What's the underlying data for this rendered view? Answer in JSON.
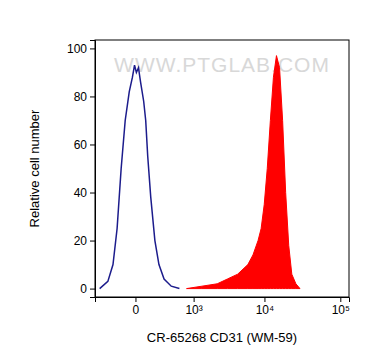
{
  "chart_data": {
    "type": "area",
    "x_label": "CR-65268 CD31 (WM-59)",
    "y_label": "Relative cell number",
    "annotations": [
      "WWW.PTGLAB.COM"
    ],
    "log": "x",
    "xlim": [
      -500,
      130000
    ],
    "ylim": [
      -3.5,
      103.5
    ],
    "xticks": [
      0,
      {
        "value": 1000,
        "label": "10³"
      },
      {
        "value": 10000,
        "label": "10⁴"
      },
      {
        "value": 100000,
        "label": "10⁵"
      }
    ],
    "yticks": [
      0,
      20,
      40,
      60,
      80,
      100
    ],
    "series": [
      {
        "type": "line",
        "color": "#1c1c8c",
        "x": [
          -407,
          -272,
          -203,
          -155,
          -113,
          -76,
          -43,
          -20,
          -6,
          6,
          20,
          35,
          59,
          76,
          94,
          123,
          167,
          216,
          287,
          407,
          579
        ],
        "values": [
          0,
          3,
          10,
          25,
          50,
          70,
          82,
          88,
          93,
          90,
          92,
          86,
          78,
          70,
          55,
          38,
          20,
          10,
          4,
          1,
          0
        ]
      },
      {
        "type": "area",
        "color": "#ff0000",
        "x": [
          768,
          1342,
          2253,
          3138,
          4345,
          5985,
          7014,
          8212,
          9030,
          9930,
          10900,
          11990,
          13170,
          14450,
          15880,
          17430,
          19130,
          21000,
          23060,
          26100,
          29550
        ],
        "values": [
          0,
          1,
          2,
          4,
          6,
          10,
          14,
          20,
          25,
          35,
          50,
          70,
          88,
          97,
          92,
          70,
          40,
          18,
          6,
          2,
          0
        ]
      }
    ]
  }
}
